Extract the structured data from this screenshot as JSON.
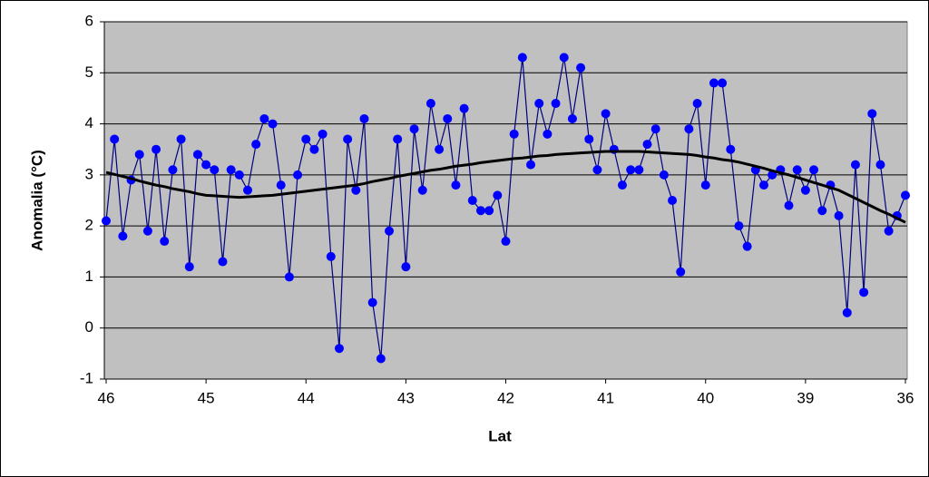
{
  "chart_data": {
    "type": "line",
    "y_label": "Anomalia (°C)",
    "x_label": "Lat",
    "categories": [
      "46",
      null,
      null,
      null,
      null,
      null,
      null,
      null,
      null,
      null,
      null,
      null,
      "45",
      null,
      null,
      null,
      null,
      null,
      null,
      null,
      null,
      null,
      null,
      null,
      "44",
      null,
      null,
      null,
      null,
      null,
      null,
      null,
      null,
      null,
      null,
      null,
      "43",
      null,
      null,
      null,
      null,
      null,
      null,
      null,
      null,
      null,
      null,
      null,
      "42",
      null,
      null,
      null,
      null,
      null,
      null,
      null,
      null,
      null,
      null,
      null,
      "41",
      null,
      null,
      null,
      null,
      null,
      null,
      null,
      null,
      null,
      null,
      null,
      "40",
      null,
      null,
      null,
      null,
      null,
      null,
      null,
      null,
      null,
      null,
      null,
      "39",
      null,
      null,
      null,
      null,
      null,
      null,
      null,
      null,
      null,
      null,
      null,
      "36"
    ],
    "series": [
      {
        "color": "#0000ff",
        "line_color": "#000080",
        "marker": "circle",
        "values": [
          2.1,
          3.7,
          1.8,
          2.9,
          3.4,
          1.9,
          3.5,
          1.7,
          3.1,
          3.7,
          1.2,
          3.4,
          3.2,
          3.1,
          1.3,
          3.1,
          3.0,
          2.7,
          3.6,
          4.1,
          4.0,
          2.8,
          1.0,
          3.0,
          3.7,
          3.5,
          3.8,
          1.4,
          -0.4,
          3.7,
          2.7,
          4.1,
          0.5,
          -0.6,
          1.9,
          3.7,
          1.2,
          3.9,
          2.7,
          4.4,
          3.5,
          4.1,
          2.8,
          4.3,
          2.5,
          2.3,
          2.3,
          2.6,
          1.7,
          3.8,
          5.3,
          3.2,
          4.4,
          3.8,
          4.4,
          5.3,
          4.1,
          5.1,
          3.7,
          3.1,
          4.2,
          3.5,
          2.8,
          3.1,
          3.1,
          3.6,
          3.9,
          3.0,
          2.5,
          1.1,
          3.9,
          4.4,
          2.8,
          4.8,
          4.8,
          3.5,
          2.0,
          1.6,
          3.1,
          2.8,
          3.0,
          3.1,
          2.4,
          3.1,
          2.7,
          3.1,
          2.3,
          2.8,
          2.2,
          0.3,
          3.2,
          0.7,
          4.2,
          3.2,
          1.9,
          2.2,
          2.6
        ]
      },
      {
        "color": "#000000",
        "marker": "none",
        "values": [
          3.05,
          3.01,
          2.97,
          2.93,
          2.88,
          2.84,
          2.8,
          2.77,
          2.73,
          2.7,
          2.67,
          2.63,
          2.6,
          2.59,
          2.58,
          2.57,
          2.56,
          2.57,
          2.58,
          2.59,
          2.6,
          2.62,
          2.64,
          2.66,
          2.68,
          2.7,
          2.72,
          2.74,
          2.76,
          2.78,
          2.8,
          2.83,
          2.87,
          2.9,
          2.93,
          2.97,
          3.0,
          3.03,
          3.06,
          3.09,
          3.11,
          3.14,
          3.17,
          3.19,
          3.21,
          3.24,
          3.26,
          3.28,
          3.3,
          3.32,
          3.33,
          3.35,
          3.37,
          3.38,
          3.4,
          3.41,
          3.42,
          3.43,
          3.44,
          3.45,
          3.46,
          3.46,
          3.46,
          3.46,
          3.46,
          3.45,
          3.44,
          3.43,
          3.42,
          3.41,
          3.4,
          3.38,
          3.35,
          3.33,
          3.3,
          3.28,
          3.25,
          3.21,
          3.17,
          3.13,
          3.08,
          3.04,
          3.0,
          2.95,
          2.9,
          2.85,
          2.8,
          2.75,
          2.7,
          2.62,
          2.54,
          2.46,
          2.38,
          2.3,
          2.23,
          2.15,
          2.07
        ]
      }
    ],
    "ylim": [
      -1,
      6
    ],
    "yticks": [
      -1,
      0,
      1,
      2,
      3,
      4,
      5,
      6
    ],
    "grid": true,
    "plot_background": "#c0c0c0"
  }
}
